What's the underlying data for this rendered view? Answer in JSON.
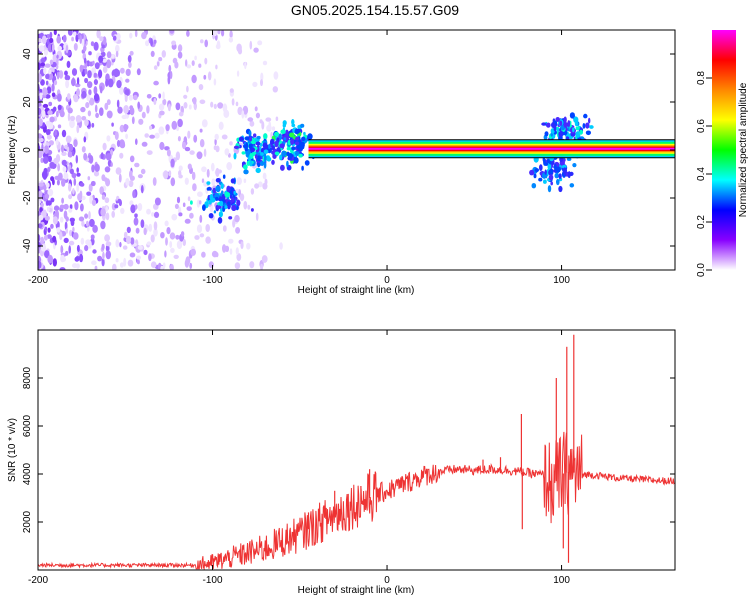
{
  "title": "GN05.2025.154.15.57.G09",
  "chart_data": [
    {
      "type": "heatmap",
      "xlabel": "Height of straight line (km)",
      "ylabel": "Frequency (Hz)",
      "xlim": [
        -200,
        165
      ],
      "ylim": [
        -50,
        50
      ],
      "xticks": [
        -200,
        -100,
        0,
        100
      ],
      "yticks": [
        -40,
        -20,
        0,
        20,
        40
      ],
      "colorbar": {
        "label": "Normalized spectral amplitude",
        "range": [
          0,
          1
        ],
        "ticks": [
          "0.0",
          "0.2",
          "0.4",
          "0.6",
          "0.8"
        ],
        "colors": [
          "#ffffff",
          "#8800ff",
          "#0000ff",
          "#00ffff",
          "#00ff00",
          "#ffff00",
          "#ff8800",
          "#ff0000",
          "#ff00ff"
        ]
      },
      "ridge": {
        "freq_hz": 0.5,
        "x_start": -45,
        "x_end": 165,
        "amplitude": 1.0
      },
      "noise_region": {
        "x_start": -200,
        "x_end": -60,
        "freq_range": [
          -50,
          50
        ]
      },
      "disturbances": [
        {
          "x": -95,
          "freq": -20,
          "amplitude": 0.25
        },
        {
          "x": -75,
          "freq": 0,
          "amplitude": 0.35
        },
        {
          "x": -55,
          "freq": 3,
          "amplitude": 0.4
        },
        {
          "x": 95,
          "freq": -8,
          "amplitude": 0.2
        },
        {
          "x": 103,
          "freq": 8,
          "amplitude": 0.3
        }
      ]
    },
    {
      "type": "line",
      "xlabel": "Height of straight line (km)",
      "ylabel": "SNR (10 * v/v)",
      "xlim": [
        -200,
        165
      ],
      "ylim": [
        0,
        10000
      ],
      "xticks": [
        -200,
        -100,
        0,
        100
      ],
      "yticks": [
        2000,
        4000,
        6000,
        8000
      ],
      "color": "#ee3333",
      "series": [
        {
          "x": [
            -200,
            -150,
            -110,
            -100,
            -90,
            -80,
            -70,
            -60,
            -50,
            -40,
            -30,
            -20,
            -10,
            0,
            10,
            20,
            30,
            40,
            50,
            60,
            70,
            80,
            90,
            95,
            100,
            105,
            110,
            120,
            130,
            140,
            150,
            165
          ],
          "values": [
            200,
            200,
            200,
            300,
            500,
            700,
            900,
            1200,
            1500,
            1900,
            2300,
            2700,
            3000,
            3300,
            3600,
            3900,
            4100,
            4200,
            4150,
            4200,
            4150,
            4050,
            3950,
            3500,
            4000,
            4100,
            4000,
            3950,
            3850,
            3800,
            3750,
            3700
          ]
        }
      ],
      "spikes": [
        {
          "x": 77,
          "y": 6500
        },
        {
          "x": 77.5,
          "y": 1700
        },
        {
          "x": 97,
          "y": 8000
        },
        {
          "x": 103,
          "y": 9300
        },
        {
          "x": 107,
          "y": 9800
        },
        {
          "x": 104,
          "y": 300
        },
        {
          "x": 101,
          "y": 900
        },
        {
          "x": 55,
          "y": 4600
        },
        {
          "x": 65,
          "y": 4700
        },
        {
          "x": -30,
          "y": 3300
        },
        {
          "x": -45,
          "y": 2400
        },
        {
          "x": -15,
          "y": 3500
        },
        {
          "x": -10,
          "y": 4200
        }
      ]
    }
  ]
}
